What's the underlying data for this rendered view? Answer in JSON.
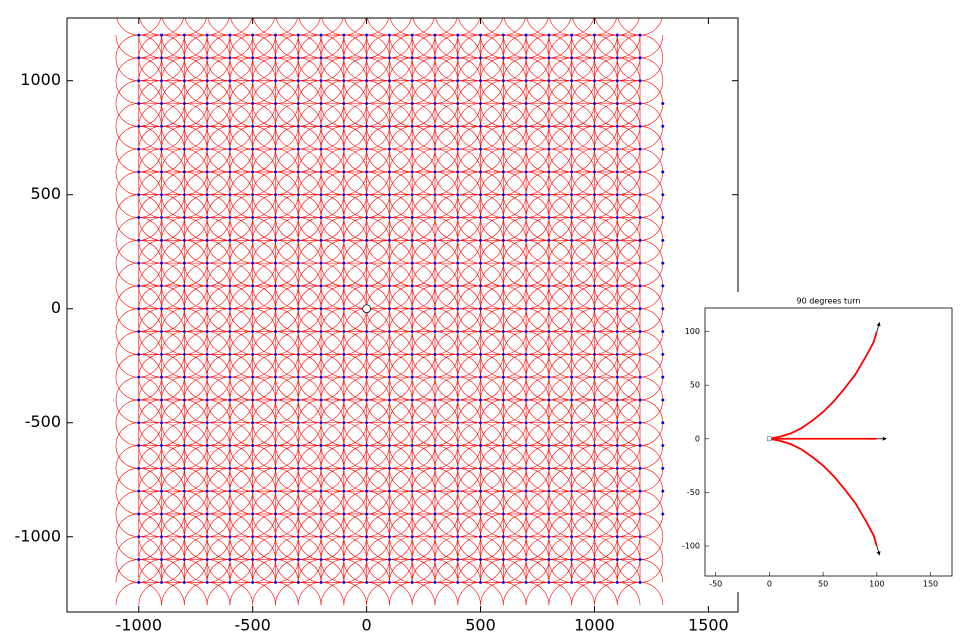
{
  "chart_data": [
    {
      "type": "lattice",
      "xlim": [
        -1315,
        1630
      ],
      "ylim": [
        -1330,
        1275
      ],
      "xticks": [
        -1000,
        -500,
        0,
        500,
        1000,
        1500
      ],
      "yticks": [
        -1000,
        -500,
        0,
        500,
        1000
      ],
      "grid_x": [
        -1000,
        -900,
        -800,
        -700,
        -600,
        -500,
        -400,
        -300,
        -200,
        -100,
        0,
        100,
        200,
        300,
        400,
        500,
        600,
        700,
        800,
        900,
        1000,
        1100,
        1200
      ],
      "grid_y": [
        -1200,
        -1100,
        -1000,
        -900,
        -800,
        -700,
        -600,
        -500,
        -400,
        -300,
        -200,
        -100,
        0,
        100,
        200,
        300,
        400,
        500,
        600,
        700,
        800,
        900,
        1000,
        1100,
        1200
      ],
      "edge_x": 1300,
      "edge_y": [
        -900,
        -800,
        -700,
        -600,
        -500,
        -400,
        -300,
        -200,
        -100,
        0,
        100,
        200,
        300,
        400,
        500,
        600,
        700,
        800,
        900
      ],
      "origin": [
        0,
        0
      ],
      "point_color": "#0000ff",
      "path_color": "#ff0000"
    },
    {
      "type": "line",
      "title": "90 degrees turn",
      "xlim": [
        -60,
        170
      ],
      "ylim": [
        -128,
        122
      ],
      "xticks": [
        -50,
        0,
        50,
        100,
        150
      ],
      "yticks": [
        -100,
        -50,
        0,
        50,
        100
      ],
      "series": [
        {
          "color": "#ff0000",
          "x": [
            0,
            10,
            20,
            30,
            40,
            50,
            60,
            70,
            80,
            90,
            97,
            100
          ],
          "values": [
            0,
            2,
            5,
            10,
            17,
            25,
            35,
            47,
            60,
            77,
            90,
            100
          ]
        },
        {
          "color": "#ff0000",
          "x": [
            0,
            100
          ],
          "values": [
            0,
            0
          ]
        },
        {
          "color": "#ff0000",
          "x": [
            0,
            10,
            20,
            30,
            40,
            50,
            60,
            70,
            80,
            90,
            97,
            100
          ],
          "values": [
            0,
            -2,
            -5,
            -10,
            -17,
            -25,
            -35,
            -47,
            -60,
            -77,
            -90,
            -100
          ]
        }
      ]
    }
  ]
}
